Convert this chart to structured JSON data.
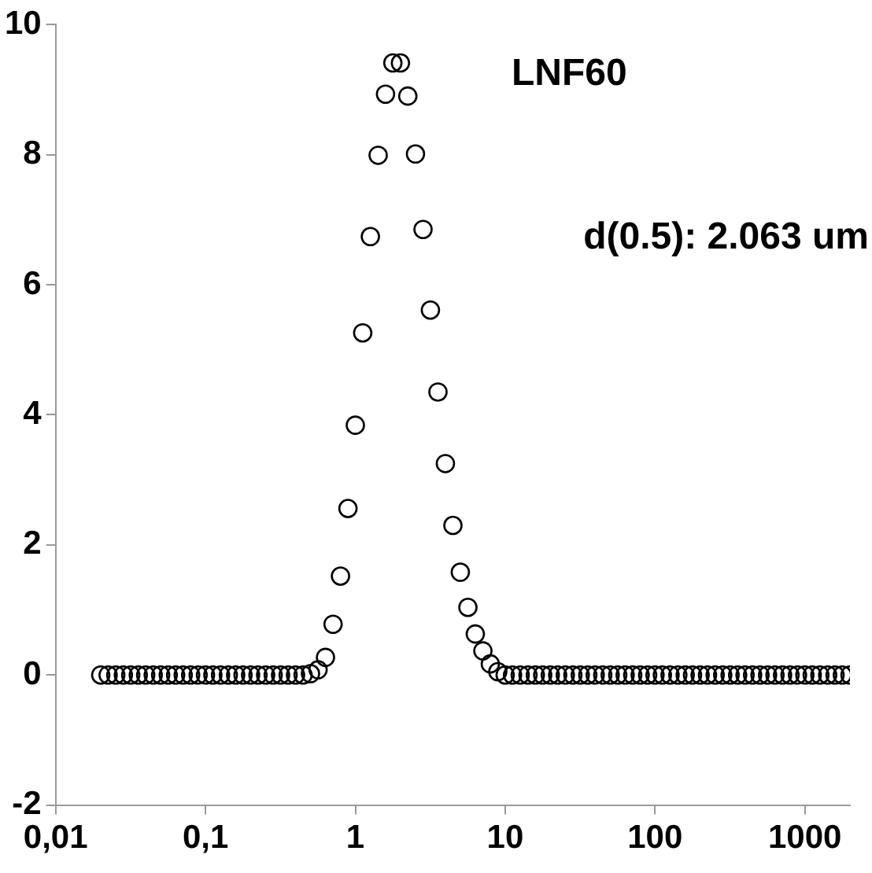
{
  "chart_data": {
    "type": "scatter",
    "log": "x",
    "grid": false,
    "marker": "circle",
    "xlim": [
      0.01,
      2000
    ],
    "ylim": [
      -2,
      10
    ],
    "xticks": [
      {
        "value": 0.01,
        "label": "0,01"
      },
      {
        "value": 0.1,
        "label": "0,1"
      },
      1,
      10,
      100,
      1000
    ],
    "yticks": [
      -2,
      0,
      2,
      4,
      6,
      8,
      10
    ],
    "annotations": [
      "LNF60",
      "d(0.5): 2.063 um"
    ],
    "x": [
      0.02,
      0.0224,
      0.0252,
      0.0283,
      0.0317,
      0.0356,
      0.0399,
      0.0448,
      0.0502,
      0.0564,
      0.0632,
      0.071,
      0.0796,
      0.0893,
      0.1,
      0.112,
      0.126,
      0.142,
      0.159,
      0.178,
      0.2,
      0.224,
      0.252,
      0.283,
      0.317,
      0.356,
      0.399,
      0.448,
      0.502,
      0.564,
      0.632,
      0.71,
      0.796,
      0.893,
      1.0,
      1.12,
      1.26,
      1.42,
      1.59,
      1.78,
      2,
      2.24,
      2.52,
      2.83,
      3.17,
      3.56,
      3.99,
      4.48,
      5.02,
      5.64,
      6.32,
      7.1,
      7.96,
      8.93,
      10.0,
      11.2,
      12.6,
      14.2,
      15.9,
      17.8,
      20,
      22.4,
      25.2,
      28.3,
      31.7,
      35.6,
      39.9,
      44.8,
      50.2,
      56.4,
      63.2,
      71,
      79.6,
      89.3,
      100,
      112,
      126,
      142,
      159,
      178,
      200,
      224,
      252,
      283,
      317,
      356,
      399,
      448,
      502,
      564,
      632,
      710,
      796,
      893,
      1000,
      1120,
      1260,
      1420,
      1590,
      1780,
      2000
    ],
    "series": [
      {
        "color": "#000000",
        "values": [
          0,
          0,
          0,
          0,
          0,
          0,
          0,
          0,
          0,
          0,
          0,
          0,
          0,
          0,
          0,
          0,
          0,
          0,
          0,
          0,
          0,
          0,
          0,
          0,
          0,
          0,
          0,
          0,
          0.02,
          0.08,
          0.27,
          0.78,
          1.52,
          2.56,
          3.84,
          5.26,
          6.74,
          7.99,
          8.93,
          9.41,
          9.41,
          8.9,
          8.01,
          6.85,
          5.61,
          4.35,
          3.25,
          2.3,
          1.58,
          1.04,
          0.63,
          0.37,
          0.17,
          0.05,
          0,
          0,
          0,
          0,
          0,
          0,
          0,
          0,
          0,
          0,
          0,
          0,
          0,
          0,
          0,
          0,
          0,
          0,
          0,
          0,
          0,
          0,
          0,
          0,
          0,
          0,
          0,
          0,
          0,
          0,
          0,
          0,
          0,
          0,
          0,
          0,
          0,
          0,
          0,
          0,
          0,
          0,
          0,
          0,
          0,
          0,
          0
        ]
      }
    ]
  }
}
